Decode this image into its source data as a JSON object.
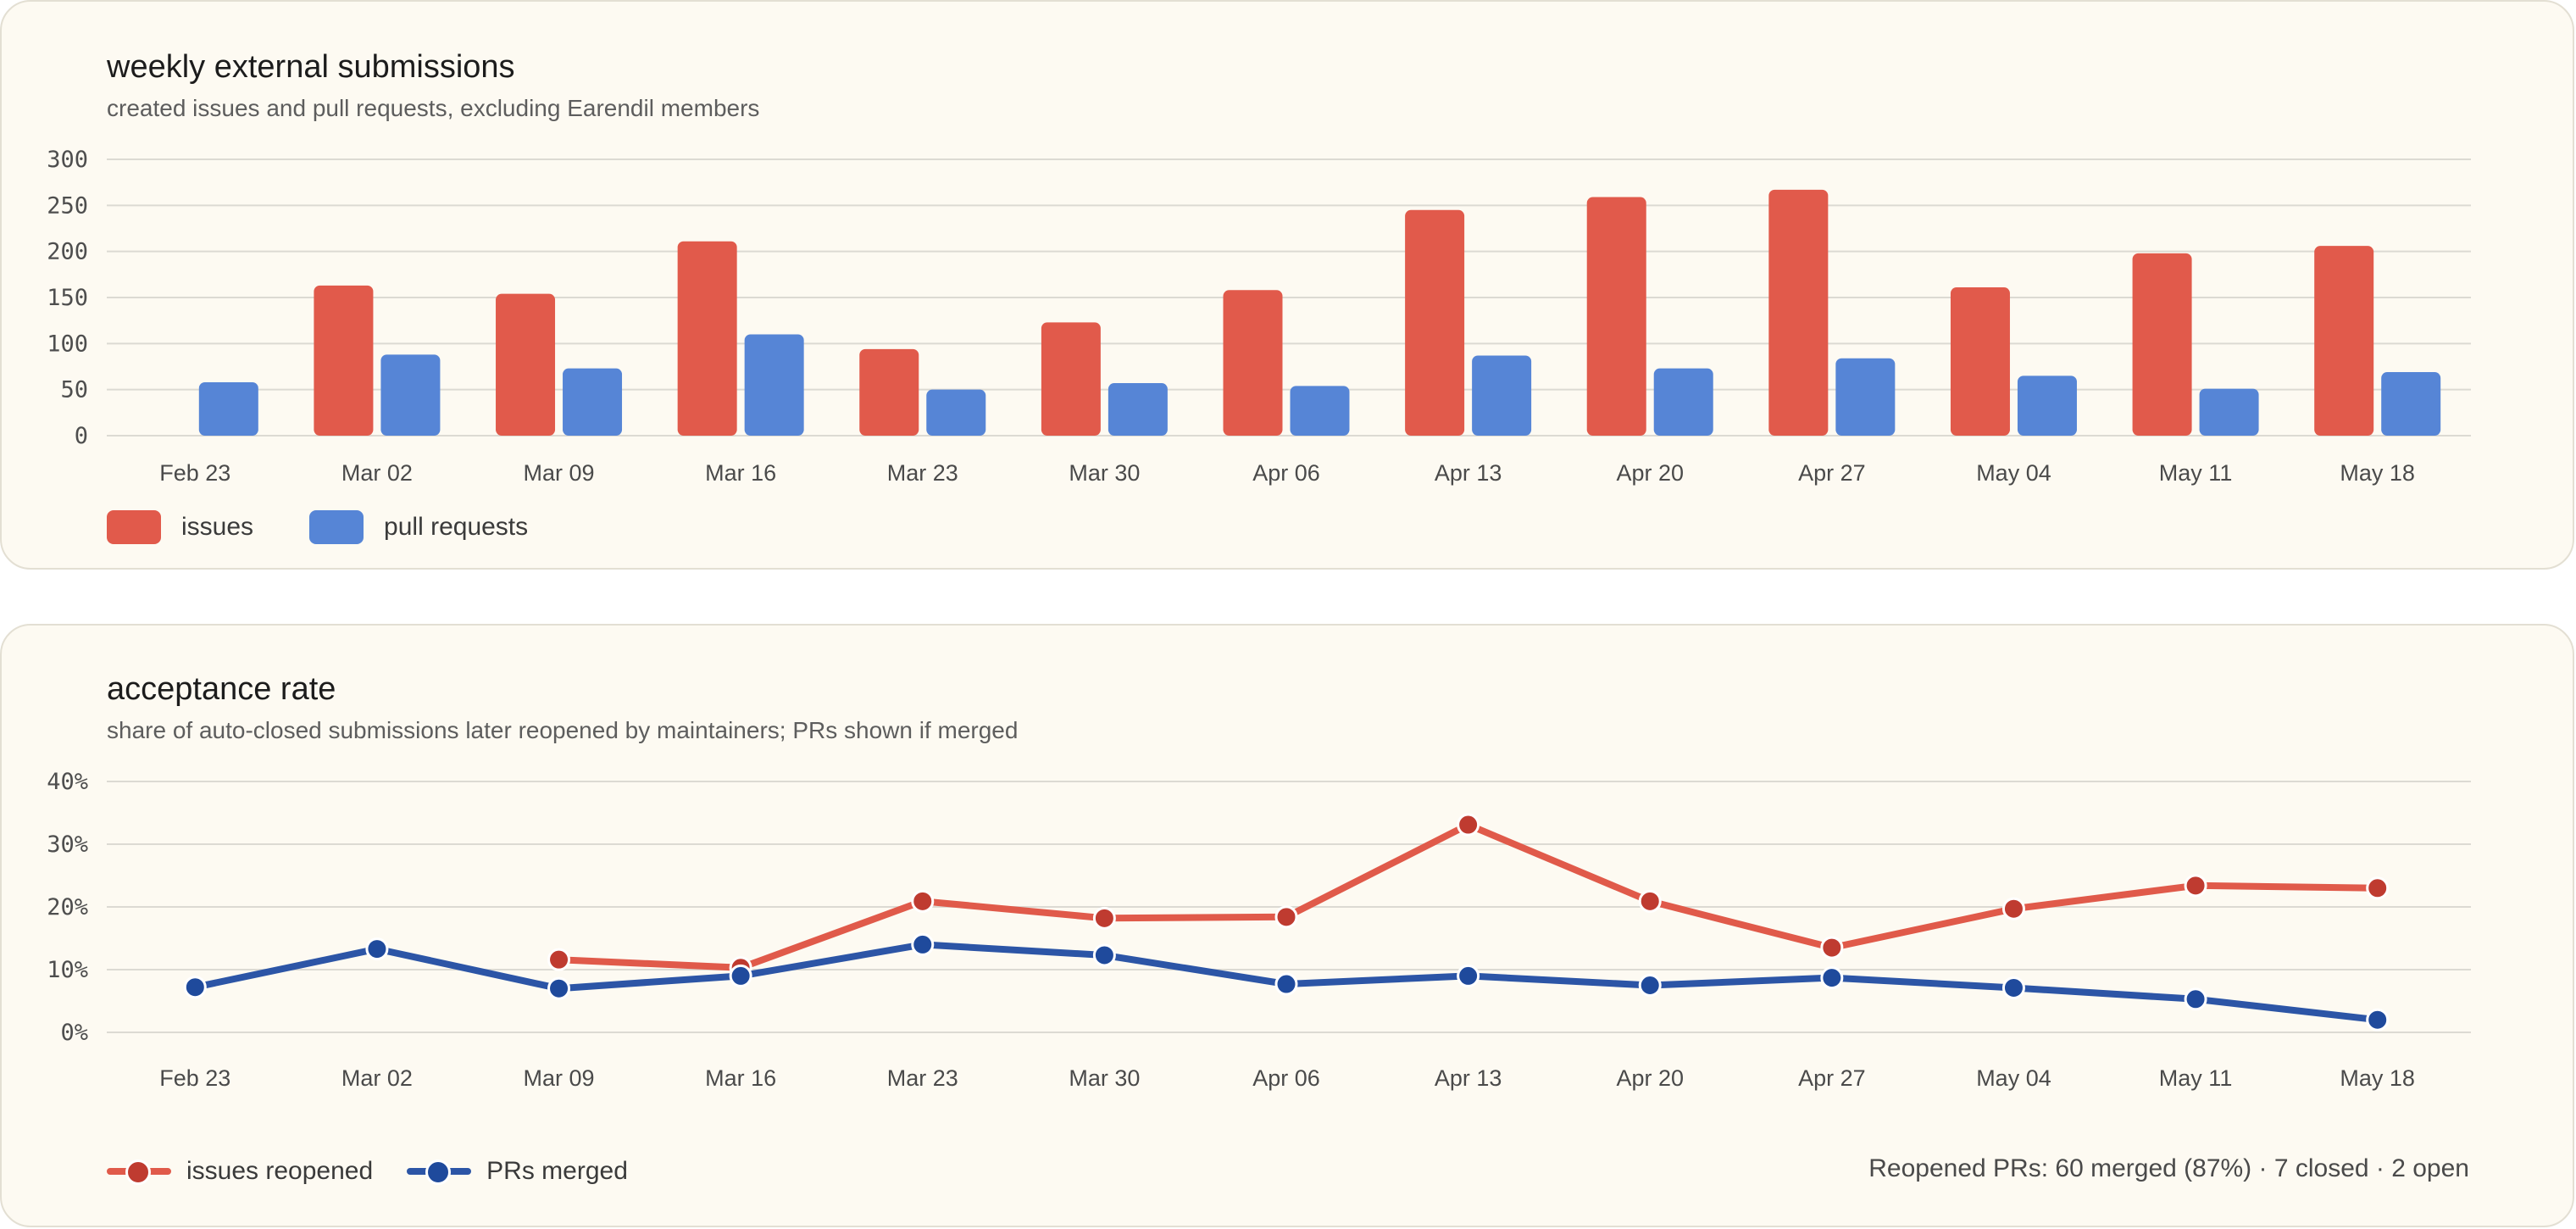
{
  "colors": {
    "issues_bar": "#e15a4b",
    "prs_bar": "#5685d6",
    "issues_line": "#e05a4a",
    "issues_dot": "#bf3b30",
    "prs_line": "#2c55a6",
    "prs_dot": "#1f4a9c",
    "grid": "#dcdad3",
    "card_bg": "#fdfaf2"
  },
  "panels": {
    "submissions": {
      "title": "weekly external submissions",
      "subtitle": "created issues and pull requests, excluding Earendil members",
      "legend": [
        {
          "label": "issues",
          "color": "#e15a4b"
        },
        {
          "label": "pull requests",
          "color": "#5685d6"
        }
      ]
    },
    "acceptance": {
      "title": "acceptance rate",
      "subtitle": "share of auto-closed submissions later reopened by maintainers; PRs shown if merged",
      "legend": [
        {
          "label": "issues reopened",
          "color": "#e05a4a"
        },
        {
          "label": "PRs merged",
          "color": "#2c55a6"
        }
      ],
      "summary": "Reopened PRs: 60 merged (87%) · 7 closed · 2 open"
    }
  },
  "chart_data": [
    {
      "type": "bar",
      "title": "weekly external submissions",
      "subtitle": "created issues and pull requests, excluding Earendil members",
      "categories": [
        "Feb 23",
        "Mar 02",
        "Mar 09",
        "Mar 16",
        "Mar 23",
        "Mar 30",
        "Apr 06",
        "Apr 13",
        "Apr 20",
        "Apr 27",
        "May 04",
        "May 11",
        "May 18"
      ],
      "series": [
        {
          "name": "issues",
          "values": [
            null,
            163,
            154,
            211,
            94,
            123,
            158,
            245,
            259,
            267,
            161,
            198,
            206
          ]
        },
        {
          "name": "pull requests",
          "values": [
            58,
            88,
            73,
            110,
            50,
            57,
            54,
            87,
            73,
            84,
            65,
            51,
            69
          ]
        }
      ],
      "yticks": [
        "0",
        "50",
        "100",
        "150",
        "200",
        "250",
        "300"
      ],
      "ylim": [
        0,
        300
      ],
      "grid": true,
      "legend": "bottom-left"
    },
    {
      "type": "line",
      "title": "acceptance rate",
      "subtitle": "share of auto-closed submissions later reopened by maintainers; PRs shown if merged",
      "categories": [
        "Feb 23",
        "Mar 02",
        "Mar 09",
        "Mar 16",
        "Mar 23",
        "Mar 30",
        "Apr 06",
        "Apr 13",
        "Apr 20",
        "Apr 27",
        "May 04",
        "May 11",
        "May 18"
      ],
      "series": [
        {
          "name": "issues reopened",
          "values": [
            null,
            null,
            11.6,
            10.3,
            20.9,
            18.2,
            18.4,
            33.1,
            20.9,
            13.5,
            19.7,
            23.4,
            23.0
          ]
        },
        {
          "name": "PRs merged",
          "values": [
            7.2,
            13.3,
            7.0,
            9.0,
            14.0,
            12.3,
            7.7,
            9.0,
            7.5,
            8.7,
            7.1,
            5.3,
            2.0
          ]
        }
      ],
      "yticks": [
        "0%",
        "10%",
        "20%",
        "30%",
        "40%"
      ],
      "ylim": [
        0,
        40
      ],
      "grid": true,
      "legend": "bottom-left"
    }
  ]
}
